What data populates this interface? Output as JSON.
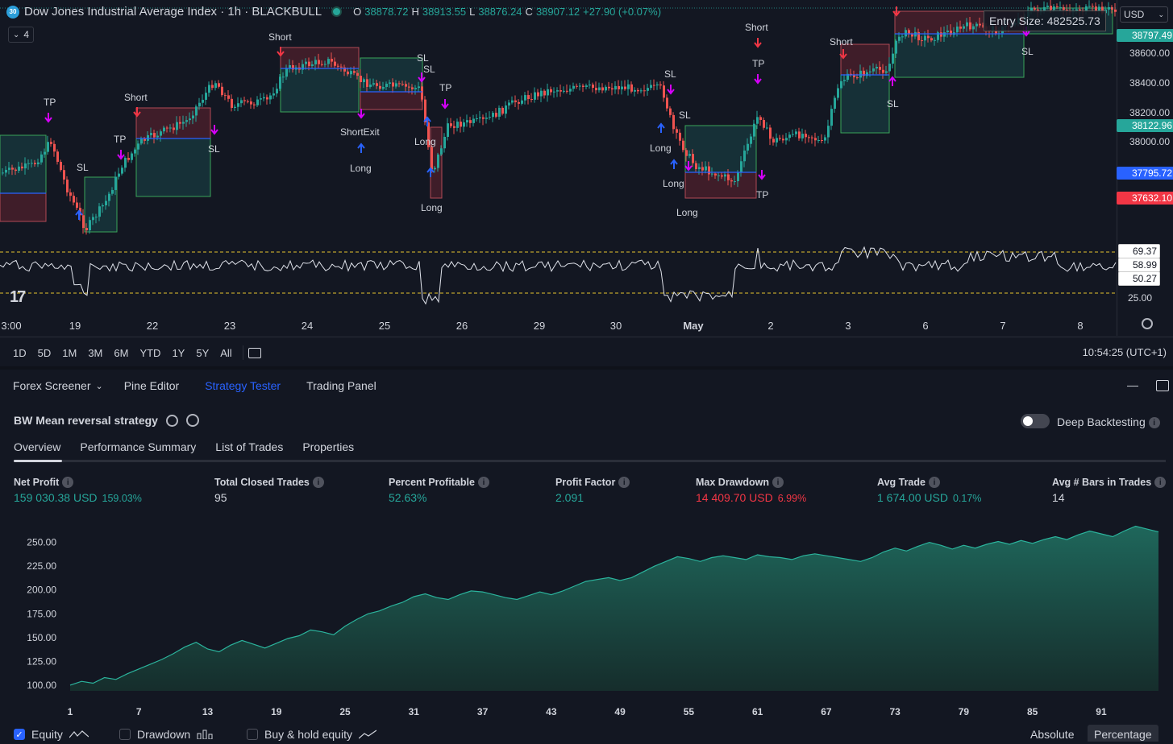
{
  "header": {
    "symbol_badge": "30",
    "title": "Dow Jones Industrial Average Index · 1h · BLACKBULL",
    "ohlc": [
      {
        "k": "O",
        "v": "38878.72"
      },
      {
        "k": "H",
        "v": "38913.55"
      },
      {
        "k": "L",
        "v": "38876.24"
      },
      {
        "k": "C",
        "v": "38907.12"
      },
      {
        "k": "",
        "v": "+27.90 (+0.07%)"
      }
    ],
    "indicator_count": "4",
    "currency": "USD",
    "entry_tooltip": "Entry Size: 482525.73"
  },
  "price_axis": {
    "ticks": [
      "38600.00",
      "38400.00",
      "38200.00",
      "38000.00"
    ],
    "labels": [
      {
        "text": "38797.49",
        "color": "#26a69a"
      },
      {
        "text": "38122.96",
        "color": "#26a69a"
      },
      {
        "text": "37795.72",
        "color": "#2962ff"
      },
      {
        "text": "37632.10",
        "color": "#f23645"
      }
    ],
    "osc_labels": [
      "69.37",
      "58.99",
      "50.27"
    ],
    "osc_tick": "25.00"
  },
  "time_axis": [
    "3:00",
    "19",
    "22",
    "23",
    "24",
    "25",
    "26",
    "29",
    "30",
    "May",
    "2",
    "3",
    "6",
    "7",
    "8"
  ],
  "trade_labels": {
    "tp": "TP",
    "sl": "SL",
    "short": "Short",
    "long": "Long",
    "short_exit": "ShortExit"
  },
  "range_buttons": [
    "1D",
    "5D",
    "1M",
    "3M",
    "6M",
    "YTD",
    "1Y",
    "5Y",
    "All"
  ],
  "clock": "10:54:25 (UTC+1)",
  "panel_tabs": [
    "Forex Screener",
    "Pine Editor",
    "Strategy Tester",
    "Trading Panel"
  ],
  "strategy": {
    "name": "BW Mean reversal strategy",
    "deep_backtesting": "Deep Backtesting",
    "sub_tabs": [
      "Overview",
      "Performance Summary",
      "List of Trades",
      "Properties"
    ]
  },
  "metrics": [
    {
      "title": "Net Profit",
      "value": "159 030.38 USD",
      "extra": "159.03%",
      "color": "green"
    },
    {
      "title": "Total Closed Trades",
      "value": "95",
      "extra": "",
      "color": "plain"
    },
    {
      "title": "Percent Profitable",
      "value": "52.63%",
      "extra": "",
      "color": "green"
    },
    {
      "title": "Profit Factor",
      "value": "2.091",
      "extra": "",
      "color": "green"
    },
    {
      "title": "Max Drawdown",
      "value": "14 409.70 USD",
      "extra": "6.99%",
      "color": "red"
    },
    {
      "title": "Avg Trade",
      "value": "1 674.00 USD",
      "extra": "0.17%",
      "color": "green"
    },
    {
      "title": "Avg # Bars in Trades",
      "value": "14",
      "extra": "",
      "color": "plain"
    }
  ],
  "legend": {
    "equity": "Equity",
    "drawdown": "Drawdown",
    "buy_hold": "Buy & hold equity",
    "absolute": "Absolute",
    "percentage": "Percentage"
  },
  "chart_data": {
    "type": "area",
    "x_ticks": [
      1,
      7,
      13,
      19,
      25,
      31,
      37,
      43,
      49,
      55,
      61,
      67,
      73,
      79,
      85,
      91
    ],
    "y_ticks": [
      100,
      125,
      150,
      175,
      200,
      225,
      250
    ],
    "ylim": [
      94,
      270
    ],
    "xlim": [
      0,
      97
    ],
    "x": [
      1,
      2,
      3,
      4,
      5,
      6,
      7,
      8,
      9,
      10,
      11,
      12,
      13,
      14,
      15,
      16,
      17,
      18,
      19,
      20,
      21,
      22,
      23,
      24,
      25,
      26,
      27,
      28,
      29,
      30,
      31,
      32,
      33,
      34,
      35,
      36,
      37,
      38,
      39,
      40,
      41,
      42,
      43,
      44,
      45,
      46,
      47,
      48,
      49,
      50,
      51,
      52,
      53,
      54,
      55,
      56,
      57,
      58,
      59,
      60,
      61,
      62,
      63,
      64,
      65,
      66,
      67,
      68,
      69,
      70,
      71,
      72,
      73,
      74,
      75,
      76,
      77,
      78,
      79,
      80,
      81,
      82,
      83,
      84,
      85,
      86,
      87,
      88,
      89,
      90,
      91,
      92,
      93,
      94,
      95,
      96
    ],
    "y": [
      100,
      104,
      102,
      108,
      106,
      112,
      117,
      122,
      127,
      133,
      140,
      145,
      138,
      135,
      142,
      147,
      143,
      139,
      144,
      149,
      152,
      158,
      156,
      153,
      162,
      169,
      175,
      178,
      183,
      187,
      193,
      196,
      192,
      190,
      195,
      199,
      198,
      195,
      192,
      190,
      194,
      198,
      195,
      199,
      204,
      209,
      211,
      213,
      210,
      213,
      219,
      225,
      230,
      235,
      233,
      230,
      234,
      236,
      234,
      232,
      237,
      235,
      234,
      232,
      236,
      238,
      236,
      234,
      232,
      230,
      234,
      240,
      244,
      241,
      246,
      250,
      247,
      243,
      247,
      244,
      248,
      251,
      248,
      252,
      249,
      253,
      256,
      253,
      258,
      262,
      259,
      256,
      262,
      267,
      264,
      261
    ]
  }
}
